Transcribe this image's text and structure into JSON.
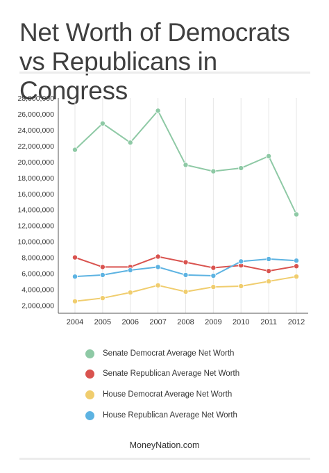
{
  "title": "Net Worth of Democrats vs Republicans in Congress",
  "source": "MoneyNation.com",
  "chart_data": {
    "type": "line",
    "title": "Net Worth of Democrats vs Republicans in Congress",
    "xlabel": "",
    "ylabel": "",
    "categories": [
      "2004",
      "2005",
      "2006",
      "2007",
      "2008",
      "2009",
      "2010",
      "2011",
      "2012"
    ],
    "ylim": [
      1000000,
      28000000
    ],
    "yticks": [
      2000000,
      4000000,
      6000000,
      8000000,
      10000000,
      12000000,
      14000000,
      16000000,
      18000000,
      20000000,
      22000000,
      24000000,
      26000000,
      28000000
    ],
    "ytick_labels": [
      "2,000,000",
      "4,000,000",
      "6,000,000",
      "8,000,000",
      "10,000,000",
      "12,000,000",
      "14,000,000",
      "16,000,000",
      "18,000,000",
      "20,000,000",
      "22,000,000",
      "24,000,000",
      "26,000,000",
      "28,000,000"
    ],
    "grid": "vertical",
    "legend_position": "bottom",
    "series": [
      {
        "name": "Senate Democrat Average Net Worth",
        "color": "#8ec9a5",
        "values": [
          21500000,
          24800000,
          22400000,
          26400000,
          19600000,
          18800000,
          19200000,
          20700000,
          13400000
        ]
      },
      {
        "name": "Senate Republican Average Net Worth",
        "color": "#d9534f",
        "values": [
          8000000,
          6800000,
          6800000,
          8100000,
          7400000,
          6700000,
          7000000,
          6300000,
          6900000
        ]
      },
      {
        "name": "House Democrat Average Net Worth",
        "color": "#f0cd6e",
        "values": [
          2500000,
          2900000,
          3600000,
          4500000,
          3700000,
          4300000,
          4400000,
          5000000,
          5600000
        ]
      },
      {
        "name": "House Republican Average Net Worth",
        "color": "#5db3e2",
        "values": [
          5600000,
          5800000,
          6400000,
          6800000,
          5800000,
          5700000,
          7500000,
          7800000,
          7600000
        ]
      }
    ]
  }
}
